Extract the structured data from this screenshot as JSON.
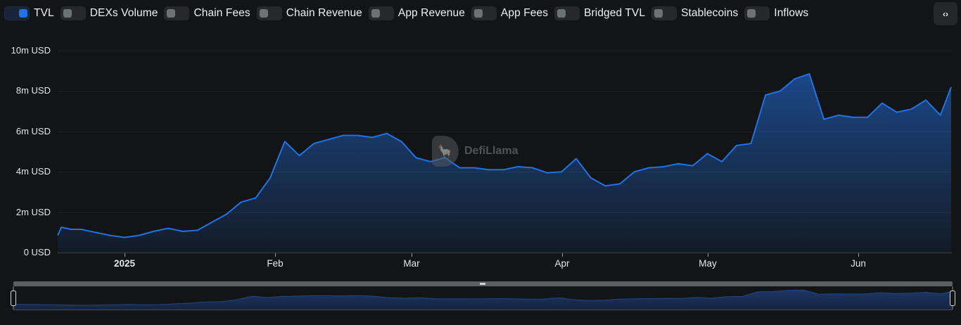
{
  "toolbar": {
    "toggles": [
      {
        "label": "TVL",
        "on": true
      },
      {
        "label": "DEXs Volume",
        "on": false
      },
      {
        "label": "Chain Fees",
        "on": false
      },
      {
        "label": "Chain Revenue",
        "on": false
      },
      {
        "label": "App Revenue",
        "on": false
      },
      {
        "label": "App Fees",
        "on": false
      },
      {
        "label": "Bridged TVL",
        "on": false
      },
      {
        "label": "Stablecoins",
        "on": false
      },
      {
        "label": "Inflows",
        "on": false
      }
    ],
    "embed_button": {
      "icon": "code-brackets-icon",
      "glyph": "‹›"
    }
  },
  "watermark": {
    "text": "DefiLlama",
    "icon": "llama-logo-icon"
  },
  "colors": {
    "line": "#2172e5",
    "background": "#131416",
    "grid": "#1f2124",
    "axis": "#3a3c40"
  },
  "chart_data": {
    "type": "area",
    "title": "",
    "xlabel": "",
    "ylabel": "",
    "series_name": "TVL",
    "ylim": [
      0,
      10000000
    ],
    "y_ticks": [
      "0 USD",
      "2m USD",
      "4m USD",
      "6m USD",
      "8m USD",
      "10m USD"
    ],
    "x_ticks": [
      {
        "label": "2025",
        "bold": true
      },
      {
        "label": "Feb",
        "bold": false
      },
      {
        "label": "Mar",
        "bold": false
      },
      {
        "label": "Apr",
        "bold": false
      },
      {
        "label": "May",
        "bold": false
      },
      {
        "label": "Jun",
        "bold": false
      }
    ],
    "grid": true,
    "legend": "toggle-bar-top",
    "x": [
      "2024-12-17",
      "2024-12-19",
      "2024-12-21",
      "2024-12-23",
      "2024-12-26",
      "2024-12-29",
      "2025-01-01",
      "2025-01-04",
      "2025-01-07",
      "2025-01-10",
      "2025-01-13",
      "2025-01-16",
      "2025-01-19",
      "2025-01-22",
      "2025-01-25",
      "2025-01-28",
      "2025-01-31",
      "2025-02-03",
      "2025-02-06",
      "2025-02-09",
      "2025-02-12",
      "2025-02-15",
      "2025-02-18",
      "2025-02-21",
      "2025-02-24",
      "2025-02-27",
      "2025-03-02",
      "2025-03-05",
      "2025-03-08",
      "2025-03-11",
      "2025-03-14",
      "2025-03-17",
      "2025-03-20",
      "2025-03-23",
      "2025-03-26",
      "2025-03-29",
      "2025-04-01",
      "2025-04-04",
      "2025-04-07",
      "2025-04-10",
      "2025-04-13",
      "2025-04-16",
      "2025-04-19",
      "2025-04-22",
      "2025-04-25",
      "2025-04-28",
      "2025-05-01",
      "2025-05-04",
      "2025-05-07",
      "2025-05-10",
      "2025-05-13",
      "2025-05-16",
      "2025-05-19",
      "2025-05-22",
      "2025-05-25",
      "2025-05-28",
      "2025-05-31",
      "2025-06-03",
      "2025-06-06",
      "2025-06-09",
      "2025-06-12",
      "2025-06-15",
      "2025-06-18",
      "2025-06-21"
    ],
    "values": [
      850000,
      1250000,
      1150000,
      1150000,
      1000000,
      850000,
      750000,
      850000,
      1050000,
      1200000,
      1050000,
      1100000,
      1500000,
      1900000,
      2500000,
      2700000,
      3700000,
      5500000,
      4800000,
      5400000,
      5600000,
      5800000,
      5800000,
      5700000,
      5900000,
      5500000,
      4700000,
      4500000,
      4700000,
      4200000,
      4200000,
      4100000,
      4100000,
      4250000,
      4200000,
      3950000,
      4000000,
      4650000,
      3700000,
      3300000,
      3400000,
      4000000,
      4200000,
      4250000,
      4400000,
      4300000,
      4900000,
      4500000,
      5300000,
      5400000,
      7800000,
      8000000,
      8600000,
      8850000,
      6600000,
      6800000,
      6700000,
      6700000,
      7400000,
      6950000,
      7100000,
      7550000,
      6800000,
      8200000
    ]
  },
  "navigator": {
    "handle_glyph": "|||"
  }
}
